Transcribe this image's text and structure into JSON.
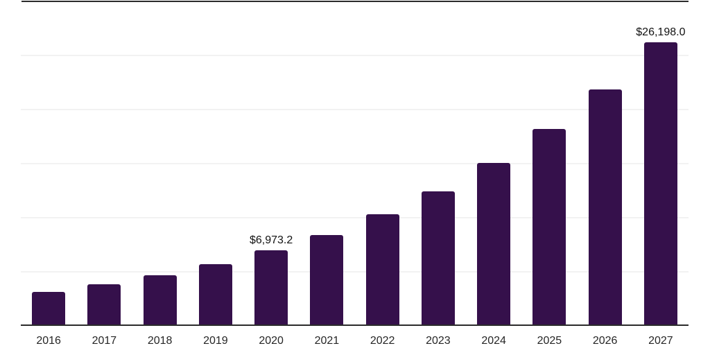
{
  "chart": {
    "colors": {
      "bar": "#35104B",
      "grid": "#f2f2f2",
      "axis": "#2b2b2b",
      "tick_label": "#262626",
      "value_label": "#111111",
      "background": "#ffffff"
    }
  },
  "chart_data": {
    "type": "bar",
    "title": "",
    "xlabel": "",
    "ylabel": "",
    "categories": [
      "2016",
      "2017",
      "2018",
      "2019",
      "2020",
      "2021",
      "2022",
      "2023",
      "2024",
      "2025",
      "2026",
      "2027"
    ],
    "values": [
      3140,
      3845,
      4650,
      5705,
      6973.2,
      8430,
      10350,
      12435,
      15095,
      18205,
      21890,
      26198
    ],
    "value_labels": [
      "",
      "",
      "",
      "",
      "$6,973.2",
      "",
      "",
      "",
      "",
      "",
      "",
      "$26,198.0"
    ],
    "ylim": [
      0,
      30000
    ],
    "grid_step": 5000,
    "gridline_values": [
      5000,
      10000,
      15000,
      20000,
      25000
    ],
    "grid": "on",
    "legend": "none",
    "y_axis_tick_labels": "none",
    "plot_border": "top-and-bottom-dark"
  }
}
